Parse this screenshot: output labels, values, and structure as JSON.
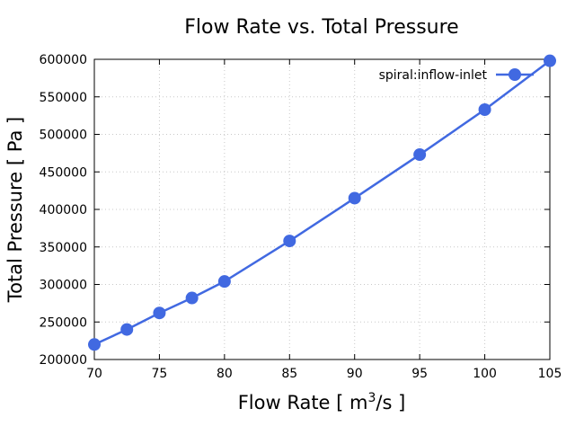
{
  "chart_data": {
    "type": "line",
    "title": "Flow Rate vs. Total Pressure",
    "xlabel_main": "Flow Rate [ m",
    "xlabel_sup": "3",
    "xlabel_tail": "/s ]",
    "ylabel": "Total Pressure [ Pa ]",
    "xlim": [
      70,
      105
    ],
    "ylim": [
      200000,
      600000
    ],
    "xticks": [
      70,
      75,
      80,
      85,
      90,
      95,
      100,
      105
    ],
    "yticks": [
      200000,
      250000,
      300000,
      350000,
      400000,
      450000,
      500000,
      550000,
      600000
    ],
    "grid": true,
    "legend_position": "top-right",
    "series": [
      {
        "name": "spiral:inflow-inlet",
        "color": "#4169e1",
        "x": [
          70,
          72.5,
          75,
          77.5,
          80,
          85,
          90,
          95,
          100,
          105
        ],
        "y": [
          220000,
          240000,
          262000,
          282000,
          304000,
          358000,
          415000,
          473000,
          533000,
          598000
        ]
      }
    ]
  }
}
